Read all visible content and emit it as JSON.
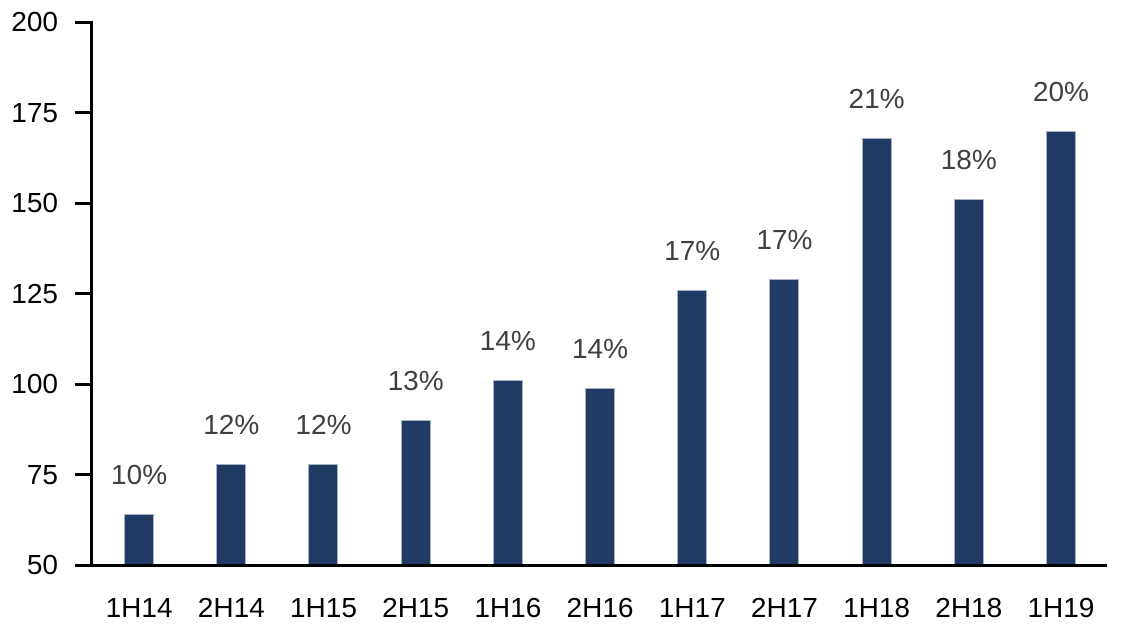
{
  "chart_data": {
    "type": "bar",
    "title": "",
    "xlabel": "",
    "ylabel": "",
    "categories": [
      "1H14",
      "2H14",
      "1H15",
      "2H15",
      "1H16",
      "2H16",
      "1H17",
      "2H17",
      "1H18",
      "2H18",
      "1H19"
    ],
    "values": [
      64,
      78,
      78,
      90,
      101,
      99,
      126,
      129,
      168,
      151,
      170
    ],
    "bar_labels": [
      "10%",
      "12%",
      "12%",
      "13%",
      "14%",
      "14%",
      "17%",
      "17%",
      "21%",
      "18%",
      "20%"
    ],
    "ylim": [
      50,
      200
    ],
    "yticks": [
      50,
      75,
      100,
      125,
      150,
      175,
      200
    ],
    "grid": false,
    "legend": "none",
    "colors": {
      "bar_fill": "#203A64",
      "bar_border": "#A9B3C6",
      "bar_value_label": "#404040",
      "axis": "#000000",
      "tick_text": "#000000",
      "background": "#ffffff"
    }
  }
}
